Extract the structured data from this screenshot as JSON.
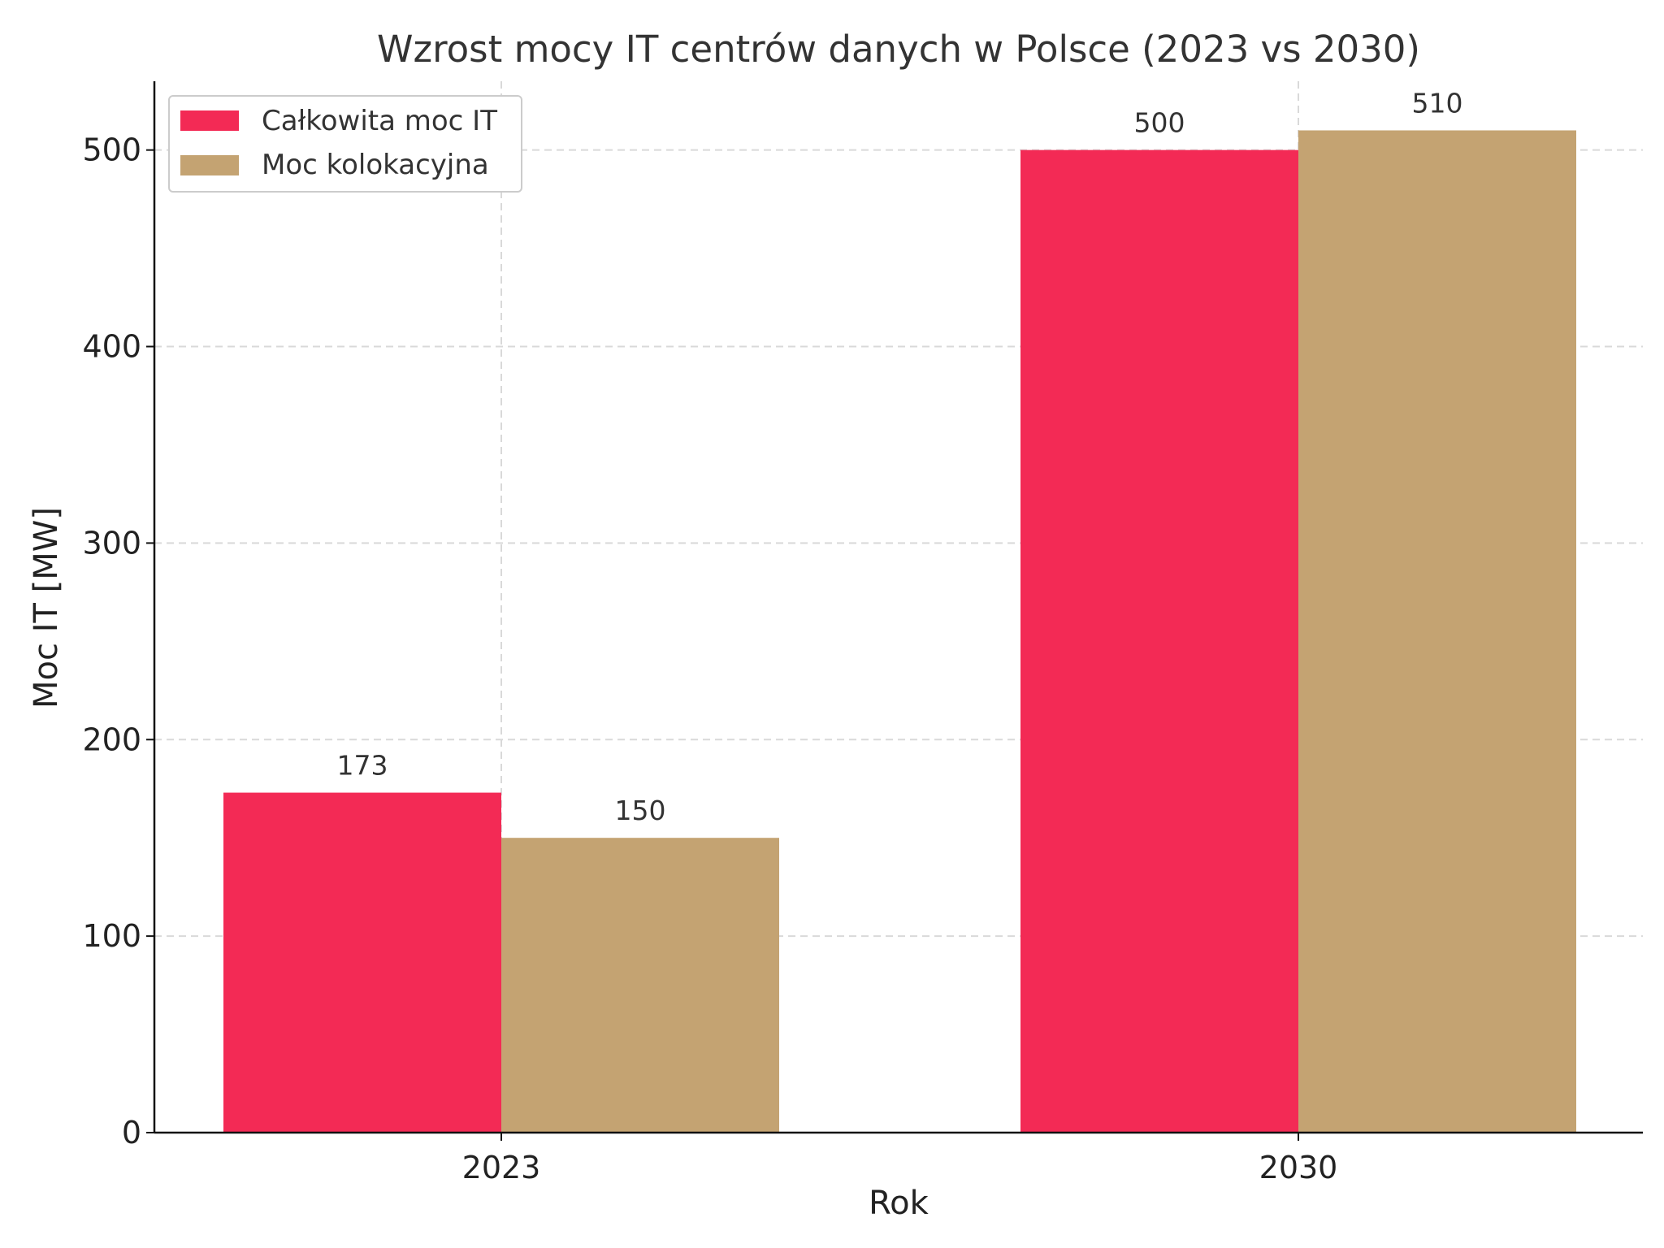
{
  "chart_data": {
    "type": "bar",
    "title": "Wzrost mocy IT centrów danych w Polsce (2023 vs 2030)",
    "xlabel": "Rok",
    "ylabel": "Moc IT [MW]",
    "categories": [
      "2023",
      "2030"
    ],
    "series": [
      {
        "name": "Całkowita moc IT",
        "values": [
          173,
          500
        ],
        "color": "#F32A55"
      },
      {
        "name": "Moc kolokacyjna",
        "values": [
          150,
          510
        ],
        "color": "#C4A372"
      }
    ],
    "ylim": [
      0,
      535
    ],
    "yticks": [
      0,
      100,
      200,
      300,
      400,
      500
    ],
    "grid": true,
    "legend_position": "top-left"
  }
}
